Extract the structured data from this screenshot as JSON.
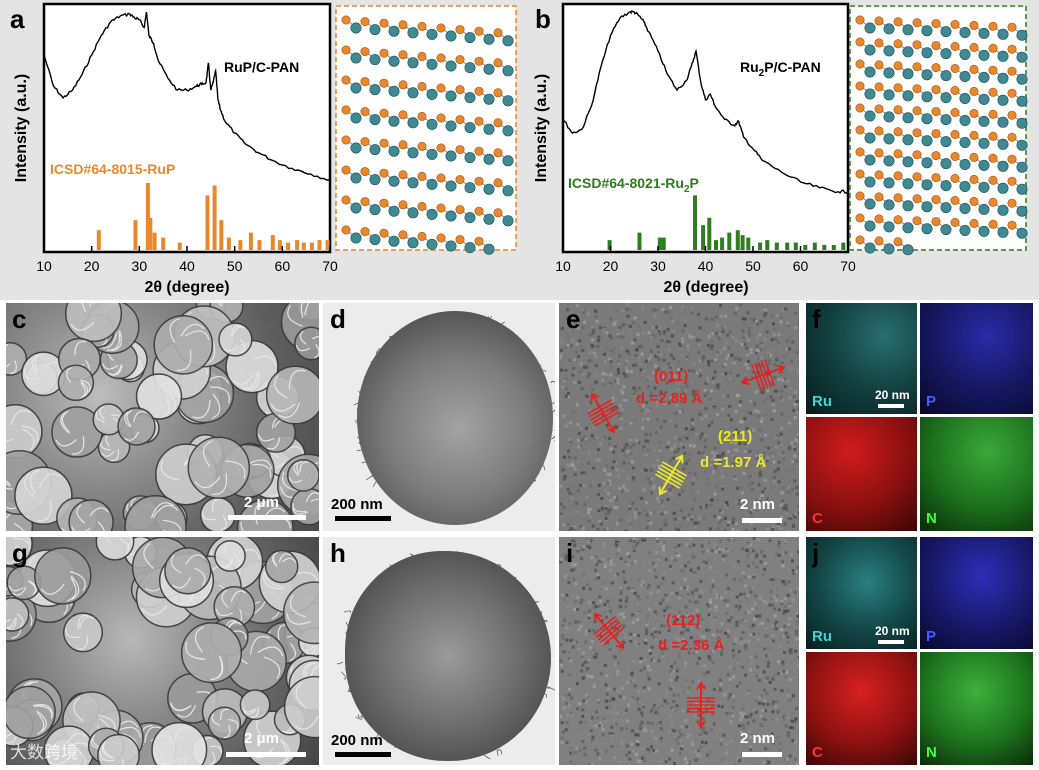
{
  "panels": {
    "a": {
      "letter": "a",
      "sample": "RuP/C-PAN",
      "reference": "ICSD#64-8015-RuP",
      "ref_color": "#e8882a"
    },
    "b": {
      "letter": "b",
      "sample_pre": "Ru",
      "sample_sub": "2",
      "sample_post": "P/C-PAN",
      "reference_pre": "ICSD#64-8021-Ru",
      "reference_sub": "2",
      "reference_post": "P",
      "ref_color": "#2e7d1e"
    },
    "c": {
      "letter": "c",
      "scale": "2 μm"
    },
    "d": {
      "letter": "d",
      "scale": "200 nm"
    },
    "e": {
      "letter": "e",
      "scale": "2 nm",
      "plane1": "(011)",
      "d1": "d =2.89 Å",
      "plane2": "(211)",
      "d2": "d =1.97 Å"
    },
    "f": {
      "letter": "f",
      "scale": "20 nm",
      "maps": [
        "Ru",
        "P",
        "C",
        "N"
      ]
    },
    "g": {
      "letter": "g",
      "scale": "2 μm"
    },
    "h": {
      "letter": "h",
      "scale": "200 nm"
    },
    "i": {
      "letter": "i",
      "scale": "2 nm",
      "plane1": "(112)",
      "d1": "d =2.36 Å"
    },
    "j": {
      "letter": "j",
      "scale": "20 nm",
      "maps": [
        "Ru",
        "P",
        "C",
        "N"
      ]
    }
  },
  "xrd_axes": {
    "ylabel": "Intensity (a.u.)",
    "xlabel": "2θ (degree)",
    "xticks": [
      10,
      20,
      30,
      40,
      50,
      60,
      70
    ]
  },
  "chart_data": [
    {
      "type": "line",
      "xlabel": "2θ (degree)",
      "ylabel": "Intensity (a.u.)",
      "xlim": [
        10,
        70
      ],
      "series": [
        {
          "name": "RuP/C-PAN",
          "x": [
            10,
            12,
            14,
            16,
            18,
            20,
            22,
            24,
            26,
            28,
            29,
            30,
            31,
            31.5,
            32,
            33,
            34,
            36,
            38,
            40,
            42,
            43,
            44,
            44.5,
            45,
            45.5,
            46,
            46.5,
            47,
            48,
            50,
            52,
            55,
            58,
            62,
            66,
            70
          ],
          "y": [
            0.78,
            0.62,
            0.56,
            0.6,
            0.68,
            0.78,
            0.88,
            0.95,
            0.98,
            0.99,
            0.97,
            0.96,
            0.92,
            1.0,
            0.88,
            0.84,
            0.75,
            0.66,
            0.6,
            0.6,
            0.62,
            0.63,
            0.64,
            0.74,
            0.6,
            0.64,
            0.7,
            0.55,
            0.5,
            0.44,
            0.38,
            0.33,
            0.28,
            0.24,
            0.2,
            0.17,
            0.14
          ]
        },
        {
          "name": "ICSD#64-8015-RuP",
          "type": "stick",
          "x": [
            21.5,
            29.2,
            31.8,
            32.3,
            33.2,
            35.0,
            38.5,
            44.3,
            45.8,
            47.2,
            48.8,
            51.2,
            53.4,
            55.2,
            58.0,
            59.5,
            61.2,
            63.1,
            64.5,
            66.2,
            67.8,
            69.5
          ],
          "y": [
            0.08,
            0.12,
            0.27,
            0.13,
            0.07,
            0.05,
            0.03,
            0.22,
            0.26,
            0.12,
            0.05,
            0.04,
            0.07,
            0.04,
            0.06,
            0.04,
            0.03,
            0.04,
            0.03,
            0.03,
            0.04,
            0.04
          ]
        }
      ]
    },
    {
      "type": "line",
      "xlabel": "2θ (degree)",
      "ylabel": "Intensity (a.u.)",
      "xlim": [
        10,
        70
      ],
      "series": [
        {
          "name": "Ru2P/C-PAN",
          "x": [
            10,
            12,
            14,
            16,
            18,
            20,
            22,
            24,
            25,
            26,
            27,
            28,
            30,
            32,
            34,
            36,
            37,
            38,
            39,
            40,
            41,
            42,
            44,
            46,
            47,
            48,
            50,
            52,
            56,
            60,
            64,
            68,
            70
          ],
          "y": [
            0.45,
            0.38,
            0.4,
            0.52,
            0.72,
            0.88,
            0.97,
            1.0,
            1.0,
            0.98,
            0.95,
            0.9,
            0.8,
            0.68,
            0.6,
            0.65,
            0.72,
            0.8,
            0.64,
            0.55,
            0.58,
            0.52,
            0.45,
            0.42,
            0.44,
            0.36,
            0.3,
            0.24,
            0.18,
            0.13,
            0.1,
            0.08,
            0.08
          ]
        },
        {
          "name": "ICSD#64-8021-Ru2P",
          "type": "stick",
          "x": [
            19.8,
            26.1,
            30.4,
            31.2,
            37.8,
            39.5,
            40.8,
            42.2,
            43.5,
            45.0,
            46.8,
            47.8,
            49.0,
            51.5,
            53.0,
            55.0,
            57.2,
            59.0,
            61.0,
            63.0,
            65.0,
            67.0,
            69.0
          ],
          "y": [
            0.04,
            0.07,
            0.05,
            0.05,
            0.22,
            0.1,
            0.13,
            0.04,
            0.05,
            0.07,
            0.08,
            0.06,
            0.05,
            0.03,
            0.04,
            0.03,
            0.03,
            0.03,
            0.02,
            0.03,
            0.02,
            0.02,
            0.03
          ]
        }
      ]
    }
  ],
  "watermark": "大数跨境"
}
